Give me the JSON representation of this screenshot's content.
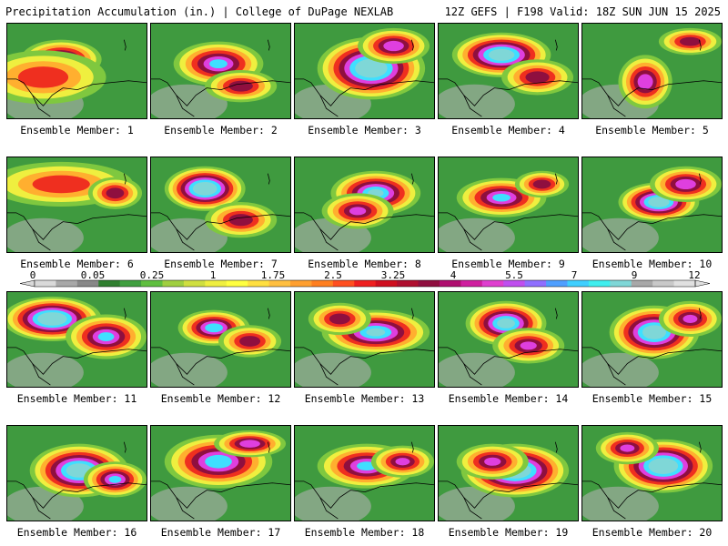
{
  "header": {
    "left_title": "Precipitation Accumulation (in.) | College of DuPage NEXLAB",
    "right_title": "12Z GEFS | F198 Valid: 18Z SUN JUN 15 2025"
  },
  "colorbar": {
    "tick_labels": [
      "0",
      "0.05",
      "0.25",
      "1",
      "1.75",
      "2.5",
      "3.25",
      "4",
      "5.5",
      "7",
      "9",
      "12"
    ],
    "colors": [
      "#d9d9d9",
      "#a8a8a8",
      "#888888",
      "#2f7f2f",
      "#3f9f3f",
      "#5fbf3f",
      "#9fcf3f",
      "#cfdf3f",
      "#efef3f",
      "#ffff3f",
      "#ffdf3f",
      "#ffbf3f",
      "#ff9f2f",
      "#ff7f1f",
      "#ff4f1f",
      "#ef1f1f",
      "#cf0f1f",
      "#af0f2f",
      "#8f0f3f",
      "#af0f6f",
      "#cf1f9f",
      "#df3fcf",
      "#bf4fef",
      "#8f6fff",
      "#4f9fff",
      "#3fcfff",
      "#3fefef",
      "#7fd7d7",
      "#a8a8a8",
      "#c8c8c8",
      "#e0e0e0"
    ]
  },
  "panels": [
    {
      "label": "Ensemble Member: 1"
    },
    {
      "label": "Ensemble Member: 2"
    },
    {
      "label": "Ensemble Member: 3"
    },
    {
      "label": "Ensemble Member: 4"
    },
    {
      "label": "Ensemble Member: 5"
    },
    {
      "label": "Ensemble Member: 6"
    },
    {
      "label": "Ensemble Member: 7"
    },
    {
      "label": "Ensemble Member: 8"
    },
    {
      "label": "Ensemble Member: 9"
    },
    {
      "label": "Ensemble Member: 10"
    },
    {
      "label": "Ensemble Member: 11"
    },
    {
      "label": "Ensemble Member: 12"
    },
    {
      "label": "Ensemble Member: 13"
    },
    {
      "label": "Ensemble Member: 14"
    },
    {
      "label": "Ensemble Member: 15"
    },
    {
      "label": "Ensemble Member: 16"
    },
    {
      "label": "Ensemble Member: 17"
    },
    {
      "label": "Ensemble Member: 18"
    },
    {
      "label": "Ensemble Member: 19"
    },
    {
      "label": "Ensemble Member: 20"
    }
  ]
}
